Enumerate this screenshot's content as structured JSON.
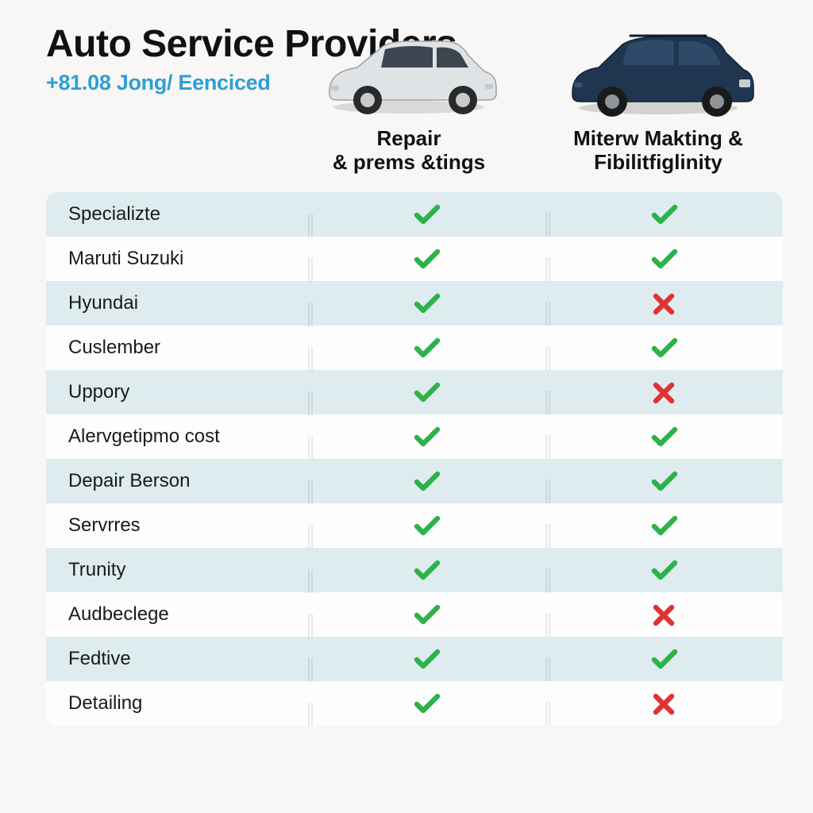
{
  "title": "Auto Service Providers",
  "subtitle": "+81.08 Jong/ Eenciced",
  "columns": [
    {
      "label_line1": "Repair",
      "label_line2": "& prems &tings",
      "car_color": "#d9dde0",
      "car_kind": "hatch"
    },
    {
      "label_line1": "Miterw Makting &",
      "label_line2": "Fibilitfiglinity",
      "car_color": "#1f3550",
      "car_kind": "suv"
    }
  ],
  "check_color": "#2db24a",
  "cross_color": "#e03232",
  "row_band_color": "#deecef",
  "row_alt_color": "#fdfdfd",
  "background_color": "#f8f7f5",
  "subtitle_color": "#2d9fd6",
  "rows": [
    {
      "label": "Specializte",
      "col1": "check",
      "col2": "check"
    },
    {
      "label": "Maruti Suzuki",
      "col1": "check",
      "col2": "check"
    },
    {
      "label": "Hyundai",
      "col1": "check",
      "col2": "cross"
    },
    {
      "label": "Cuslember",
      "col1": "check",
      "col2": "check"
    },
    {
      "label": "Uppory",
      "col1": "check",
      "col2": "cross"
    },
    {
      "label": "Alervgetipmo cost",
      "col1": "check",
      "col2": "check"
    },
    {
      "label": "Depair Berson",
      "col1": "check",
      "col2": "check"
    },
    {
      "label": "Servrres",
      "col1": "check",
      "col2": "check"
    },
    {
      "label": "Trunity",
      "col1": "check",
      "col2": "check"
    },
    {
      "label": "Audbeclege",
      "col1": "check",
      "col2": "cross"
    },
    {
      "label": "Fedtive",
      "col1": "check",
      "col2": "check"
    },
    {
      "label": "Detailing",
      "col1": "check",
      "col2": "cross"
    }
  ]
}
